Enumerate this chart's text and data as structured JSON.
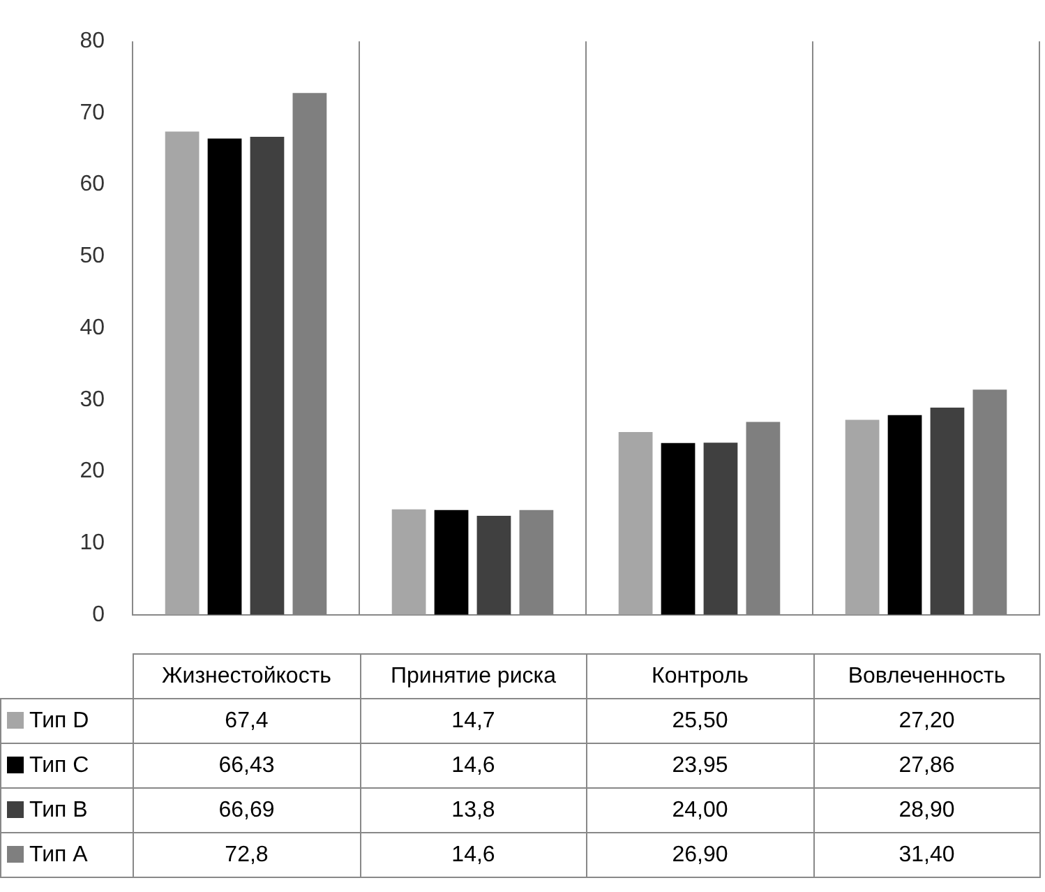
{
  "chart_data": {
    "type": "bar",
    "categories": [
      "Жизнестойкость",
      "Принятие риска",
      "Контроль",
      "Вовлеченность"
    ],
    "series": [
      {
        "name": "Тип D",
        "color": "#a6a6a6",
        "values": [
          67.4,
          14.7,
          25.5,
          27.2
        ],
        "value_labels": [
          "67,4",
          "14,7",
          "25,50",
          "27,20"
        ]
      },
      {
        "name": "Тип C",
        "color": "#000000",
        "values": [
          66.43,
          14.6,
          23.95,
          27.86
        ],
        "value_labels": [
          "66,43",
          "14,6",
          "23,95",
          "27,86"
        ]
      },
      {
        "name": "Тип B",
        "color": "#404040",
        "values": [
          66.69,
          13.8,
          24.0,
          28.9
        ],
        "value_labels": [
          "66,69",
          "13,8",
          "24,00",
          "28,90"
        ]
      },
      {
        "name": "Тип A",
        "color": "#7f7f7f",
        "values": [
          72.8,
          14.6,
          26.9,
          31.4
        ],
        "value_labels": [
          "72,8",
          "14,6",
          "26,90",
          "31,40"
        ]
      }
    ],
    "ylim": [
      0,
      80
    ],
    "yticks": [
      0,
      10,
      20,
      30,
      40,
      50,
      60,
      70,
      80
    ],
    "grid": "x",
    "legend": "bottom"
  }
}
